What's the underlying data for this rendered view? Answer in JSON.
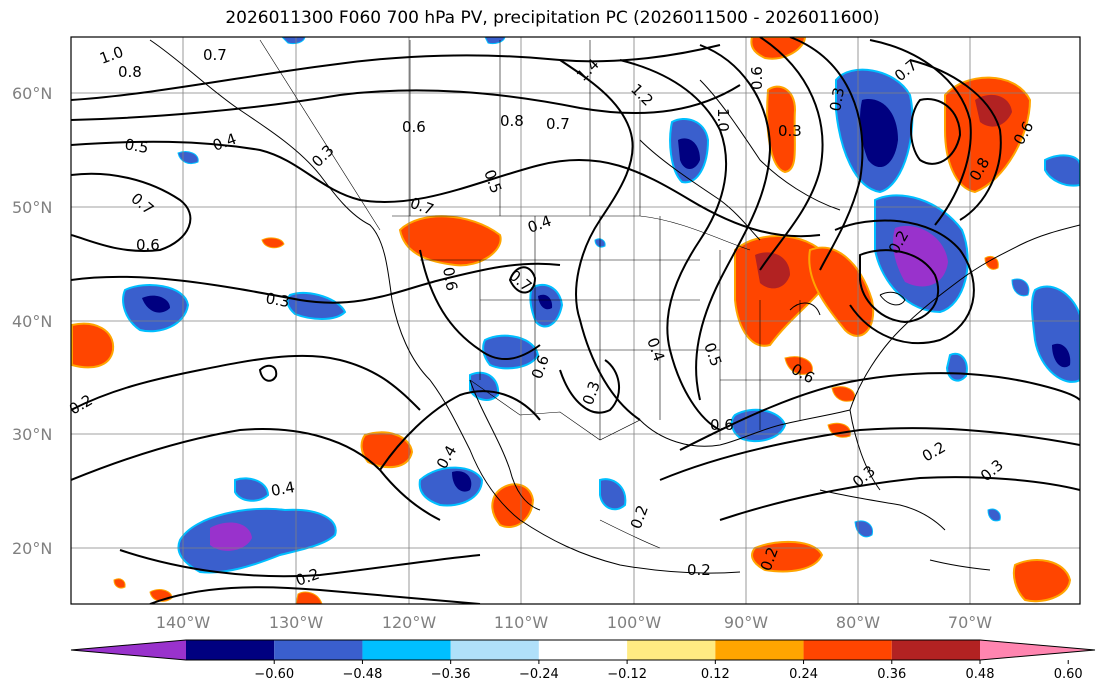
{
  "title": "2026011300 F060 700 hPa PV, precipitation PC (2026011500 - 2026011600)",
  "map": {
    "lat_labels": [
      "60°N",
      "50°N",
      "40°N",
      "30°N",
      "20°N"
    ],
    "lon_labels": [
      "140°W",
      "130°W",
      "120°W",
      "110°W",
      "100°W",
      "90°W",
      "80°W",
      "70°W"
    ],
    "contour_labels": [
      "1.0",
      "0.8",
      "0.7",
      "0.5",
      "0.4",
      "0.3",
      "0.7",
      "0.6",
      "0.6",
      "0.8",
      "0.7",
      "1.4",
      "1.2",
      "1.0",
      "0.6",
      "0.3",
      "0.5",
      "0.4",
      "0.7",
      "0.6",
      "0.7",
      "0.6",
      "0.3",
      "0.4",
      "0.5",
      "0.6",
      "0.3",
      "0.6",
      "0.4",
      "0.2",
      "0.4",
      "0.2",
      "0.2",
      "0.3",
      "0.2",
      "0.2",
      "0.3",
      "0.7",
      "0.8",
      "0.6",
      "0.3",
      "0.2",
      "0.2"
    ]
  },
  "colorbar": {
    "colors": [
      "#9932cc",
      "#000080",
      "#3a5fcd",
      "#00bfff",
      "#b0e0fa",
      "#ffffff",
      "#ffeb82",
      "#ffa500",
      "#ff4500",
      "#b22222",
      "#ff85b0"
    ],
    "ticks": [
      "−0.60",
      "−0.48",
      "−0.36",
      "−0.24",
      "−0.12",
      "0.12",
      "0.24",
      "0.36",
      "0.48",
      "0.60"
    ]
  },
  "colors": {
    "map_border": "#000000",
    "grid": "#808080"
  }
}
